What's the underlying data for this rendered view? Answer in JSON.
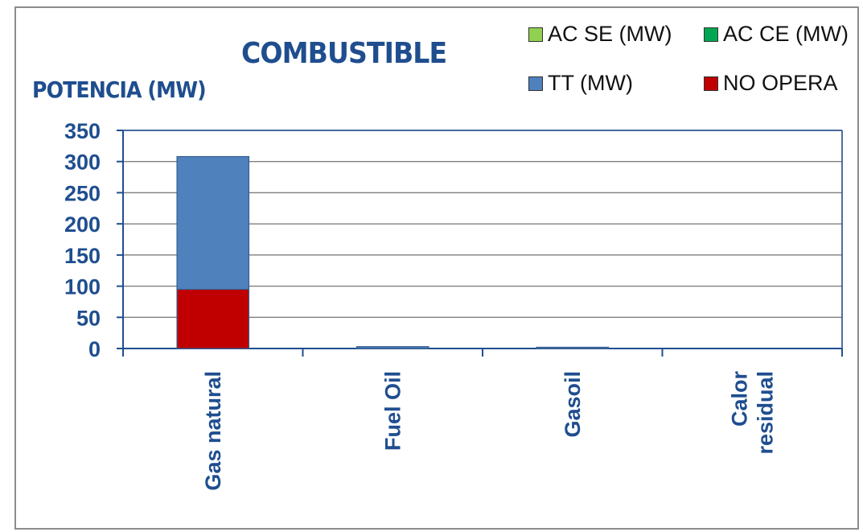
{
  "chart_data": {
    "type": "bar",
    "stacked": true,
    "title": "COMBUSTIBLE",
    "ylabel": "POTENCIA (MW)",
    "xlabel": "",
    "ylim": [
      0,
      350
    ],
    "yticks": [
      0,
      50,
      100,
      150,
      200,
      250,
      300,
      350
    ],
    "grid": true,
    "legend_position": "top-right",
    "categories": [
      "Gas natural",
      "Fuel Oil",
      "Gasoil",
      "Calor residual"
    ],
    "category_lines": [
      [
        "Gas natural"
      ],
      [
        "Fuel Oil"
      ],
      [
        "Gasoil"
      ],
      [
        "Calor",
        "residual"
      ]
    ],
    "series": [
      {
        "name": "NO OPERA",
        "color": "#c00000",
        "values": [
          95,
          0,
          0,
          0
        ]
      },
      {
        "name": "TT (MW)",
        "color": "#4f81bd",
        "values": [
          213,
          3,
          2,
          0
        ]
      },
      {
        "name": "AC SE (MW)",
        "color": "#92d050",
        "values": [
          0,
          0,
          0,
          0
        ]
      },
      {
        "name": "AC CE (MW)",
        "color": "#00a651",
        "values": [
          0,
          0,
          0,
          0
        ]
      }
    ],
    "legend_order": [
      "AC SE (MW)",
      "AC CE (MW)",
      "TT (MW)",
      "NO OPERA"
    ]
  },
  "colors": {
    "axis": "#1f4e8f",
    "tick_text": "#1f4e8f",
    "grid": "#7f7f7f"
  }
}
